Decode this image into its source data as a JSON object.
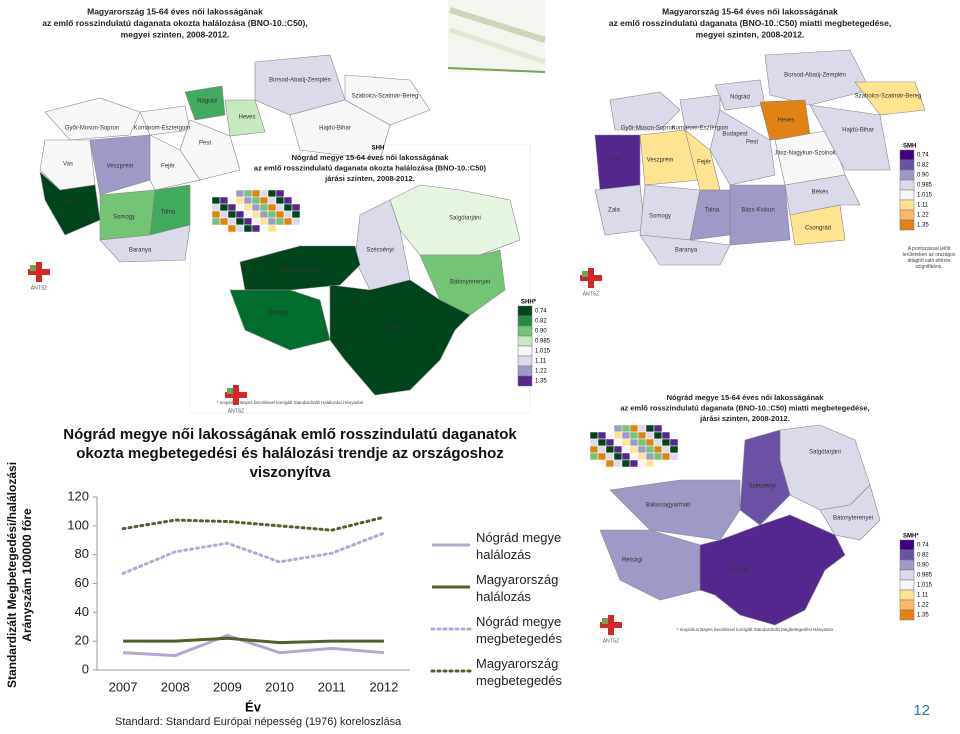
{
  "chart_data": {
    "type": "line",
    "title": "Nógrád megye női lakosságának emlő rosszindulatú daganatok okozta megbetegedési és halálozási trendje az országoshoz viszonyítva",
    "xlabel": "Év",
    "ylabel": "Standardizált Megbetegedési/halálozási Arányszám 100000 főre",
    "note": "Standard: Standard Európai népesség (1976) koreloszlása",
    "categories": [
      "2007",
      "2008",
      "2009",
      "2010",
      "2011",
      "2012"
    ],
    "series": [
      {
        "name": "Nógrád megye halálozás",
        "color": "#b4a7d6",
        "line_style": "solid",
        "values": [
          12,
          10,
          24,
          12,
          15,
          12
        ]
      },
      {
        "name": "Magyarország halálozás",
        "color": "#4f6228",
        "line_style": "solid",
        "values": [
          20,
          20,
          22,
          19,
          20,
          20
        ]
      },
      {
        "name": "Nógrád megye megbetegedés",
        "color": "#b4a7d6",
        "line_style": "dotted",
        "values": [
          67,
          82,
          88,
          75,
          81,
          95
        ]
      },
      {
        "name": "Magyarország megbetegedés",
        "color": "#4f6228",
        "line_style": "dotted",
        "values": [
          98,
          104,
          103,
          100,
          97,
          106
        ]
      }
    ],
    "ylim": [
      0,
      120
    ],
    "yticks": [
      0,
      20,
      40,
      60,
      80,
      100,
      120
    ],
    "grid": false,
    "legend": "right"
  },
  "maps": [
    {
      "title": [
        "Magyarország 15-64 éves női lakosságának",
        "az emlő rosszindulatú daganata okozta halálozása (BNO-10.:C50),",
        "megyei szinten, 2008-2012."
      ],
      "labels": [
        "Borsod-Abaúj-Zemplén",
        "Szabolcs-Szatmár-Bereg",
        "Nógrád",
        "Heves",
        "Hajdú-Bihar",
        "Győr-Moson-Sopron",
        "Komárom-Esztergom",
        "Pest",
        "Vas",
        "Veszprém",
        "Fejér",
        "Zala",
        "Somogy",
        "Tolna",
        "Baranya"
      ],
      "legend_title": "SHH"
    },
    {
      "title": [
        "Nógrád megye 15-64 éves női lakosságának",
        "az emlő rosszindulatú daganata okozta halálozása (BNO-10.:C50)",
        "járási szinten, 2008-2012."
      ],
      "labels": [
        "Salgótarjáni",
        "Szécsényi",
        "Bátonyterenyei",
        "Balassagyarmati",
        "Rétsági",
        "Pásztói"
      ],
      "legend_title": "SHH*",
      "legend": [
        "0.74",
        "0.82",
        "0.90",
        "0.985",
        "1.015",
        "1.11",
        "1.22",
        "1.35"
      ],
      "legend_colors": [
        "#00441b",
        "#238b45",
        "#74c476",
        "#c7e9c0",
        "#f7f7f7",
        "#dadaeb",
        "#9e9ac8",
        "#54278f"
      ],
      "footnote": "* empirikus Bayes becsléssel korrigált Standardizált Halálozási Hányados"
    },
    {
      "title": [
        "Magyarország 15-64 éves női lakosságának",
        "az emlő rosszindulatú daganata (BNO-10.:C50) miatti megbetegedése,",
        "megyei szinten, 2008-2012."
      ],
      "labels": [
        "Borsod-Abaúj-Zemplén",
        "Szabolcs-Szatmár-Bereg",
        "Nógrád",
        "Heves",
        "Győr-Moson-Sopron",
        "Komárom-Esztergom",
        "Budapest",
        "Pest",
        "Jász-Nagykun-Szolnok",
        "Hajdú-Bihar",
        "Vas",
        "Veszprém",
        "Fejér",
        "Zala",
        "Somogy",
        "Tolna",
        "Bács-Kiskun",
        "Békés",
        "Csongrád",
        "Baranya"
      ],
      "legend_title": "SMH",
      "legend": [
        "0.74",
        "0.82",
        "0.90",
        "0.985",
        "1.015",
        "1.11",
        "1.22",
        "1.35"
      ],
      "legend_colors": [
        "#3f007d",
        "#6a51a3",
        "#9e9ac8",
        "#dadaeb",
        "#f7f7f7",
        "#fee391",
        "#fdb863",
        "#e08214"
      ],
      "note": "A pontozással jelölt területeken az országos átlagtól való eltérés szignifikáns."
    },
    {
      "title": [
        "Nógrád megye 15-64 éves női lakosságának",
        "az emlő rosszindulatú daganata (BNO-10.:C50) miatti megbetegedése,",
        "járási szinten, 2008-2012."
      ],
      "labels": [
        "Salgótarjáni",
        "Szécsényi",
        "Bátonyterenyei",
        "Balassagyarmati",
        "Rétsági",
        "Pásztói"
      ],
      "legend_title": "SMH*",
      "legend": [
        "0.74",
        "0.82",
        "0.90",
        "0.985",
        "1.015",
        "1.11",
        "1.22",
        "1.35"
      ],
      "legend_colors": [
        "#3f007d",
        "#6a51a3",
        "#9e9ac8",
        "#dadaeb",
        "#f7f7f7",
        "#fee391",
        "#fdb863",
        "#e08214"
      ],
      "footnote": "* empirikus Bayes becsléssel korrigált Standardizált Megbetegedési Hányados"
    }
  ],
  "logo_text": "ÁNTSZ",
  "page_number": "12"
}
